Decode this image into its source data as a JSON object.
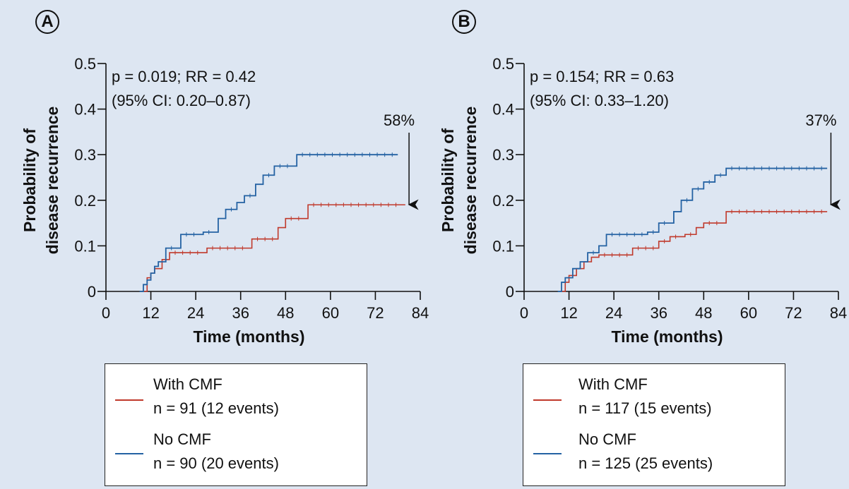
{
  "colors": {
    "with_cmf": "#c0392b",
    "no_cmf": "#2462a3"
  },
  "chart_data": [
    {
      "panel": "A",
      "type": "line",
      "ylabel_line1": "Probability of",
      "ylabel_line2": "disease recurrence",
      "xlabel": "Time (months)",
      "xlim": [
        0,
        84
      ],
      "ylim": [
        0,
        0.5
      ],
      "xticks": [
        "0",
        "12",
        "24",
        "36",
        "48",
        "60",
        "72",
        "84"
      ],
      "yticks": [
        "0",
        "0.1",
        "0.2",
        "0.3",
        "0.4",
        "0.5"
      ],
      "annotation_line1": "p = 0.019; RR = 0.42",
      "annotation_line2": "(95% CI: 0.20–0.87)",
      "arrow_label": "58%",
      "arrow_month": 81,
      "series": [
        {
          "name": "With CMF",
          "legend_n": "n = 91 (12 events)",
          "color": "#c0392b",
          "steps": [
            [
              10,
              0
            ],
            [
              11,
              0.03
            ],
            [
              12,
              0.04
            ],
            [
              13,
              0.05
            ],
            [
              15,
              0.07
            ],
            [
              17,
              0.085
            ],
            [
              27,
              0.095
            ],
            [
              39,
              0.115
            ],
            [
              46,
              0.14
            ],
            [
              48,
              0.16
            ],
            [
              54,
              0.19
            ],
            [
              80,
              0.19
            ]
          ]
        },
        {
          "name": "No CMF",
          "legend_n": "n = 90 (20 events)",
          "color": "#2462a3",
          "steps": [
            [
              9,
              0
            ],
            [
              10,
              0.015
            ],
            [
              11,
              0.025
            ],
            [
              12,
              0.04
            ],
            [
              13,
              0.055
            ],
            [
              14,
              0.065
            ],
            [
              16,
              0.095
            ],
            [
              20,
              0.125
            ],
            [
              26,
              0.13
            ],
            [
              30,
              0.16
            ],
            [
              32,
              0.18
            ],
            [
              35,
              0.195
            ],
            [
              37,
              0.21
            ],
            [
              40,
              0.235
            ],
            [
              42,
              0.255
            ],
            [
              45,
              0.275
            ],
            [
              51,
              0.3
            ],
            [
              78,
              0.3
            ]
          ]
        }
      ]
    },
    {
      "panel": "B",
      "type": "line",
      "ylabel_line1": "Probability of",
      "ylabel_line2": "disease recurrence",
      "xlabel": "Time (months)",
      "xlim": [
        0,
        84
      ],
      "ylim": [
        0,
        0.5
      ],
      "xticks": [
        "0",
        "12",
        "24",
        "36",
        "48",
        "60",
        "72",
        "84"
      ],
      "yticks": [
        "0",
        "0.1",
        "0.2",
        "0.3",
        "0.4",
        "0.5"
      ],
      "annotation_line1": "p = 0.154; RR = 0.63",
      "annotation_line2": "(95% CI: 0.33–1.20)",
      "arrow_label": "37%",
      "arrow_month": 82,
      "series": [
        {
          "name": "With CMF",
          "legend_n": "n = 117 (15 events)",
          "color": "#c0392b",
          "steps": [
            [
              10,
              0
            ],
            [
              11,
              0.02
            ],
            [
              12,
              0.035
            ],
            [
              14,
              0.05
            ],
            [
              16,
              0.065
            ],
            [
              18,
              0.075
            ],
            [
              20,
              0.08
            ],
            [
              29,
              0.095
            ],
            [
              36,
              0.11
            ],
            [
              39,
              0.12
            ],
            [
              43,
              0.125
            ],
            [
              46,
              0.14
            ],
            [
              48,
              0.15
            ],
            [
              54,
              0.175
            ],
            [
              81,
              0.175
            ]
          ]
        },
        {
          "name": "No CMF",
          "legend_n": "n = 125 (25 events)",
          "color": "#2462a3",
          "steps": [
            [
              9,
              0
            ],
            [
              10,
              0.02
            ],
            [
              11,
              0.03
            ],
            [
              13,
              0.05
            ],
            [
              15,
              0.065
            ],
            [
              17,
              0.085
            ],
            [
              20,
              0.1
            ],
            [
              22,
              0.125
            ],
            [
              33,
              0.13
            ],
            [
              36,
              0.15
            ],
            [
              40,
              0.175
            ],
            [
              42,
              0.2
            ],
            [
              45,
              0.225
            ],
            [
              48,
              0.24
            ],
            [
              51,
              0.255
            ],
            [
              54,
              0.27
            ],
            [
              81,
              0.27
            ]
          ]
        }
      ]
    }
  ]
}
